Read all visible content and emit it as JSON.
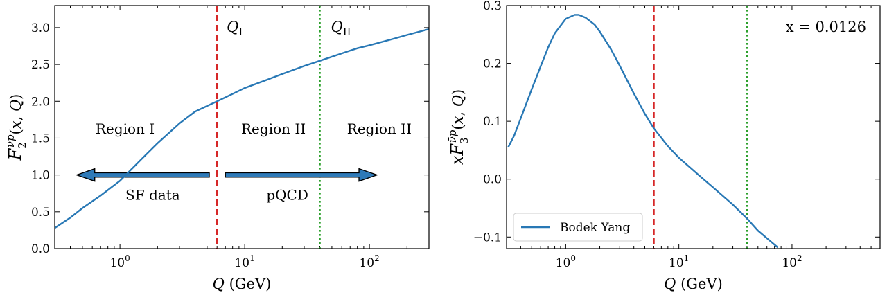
{
  "colors": {
    "curve": "#2878b5",
    "q1_line": "#d62728",
    "q2_line": "#2ca02c",
    "arrow_fill": "#2e7ab8",
    "arrow_stroke": "#000000"
  },
  "chart_data": [
    {
      "type": "line",
      "ylabel": "F_2^{νp}(x, Q)",
      "xlabel": "Q (GeV)",
      "xscale": "log",
      "xlim": [
        0.3,
        300
      ],
      "ylim": [
        0.0,
        3.3
      ],
      "xticks": [
        {
          "value": 1,
          "label": "10^0"
        },
        {
          "value": 10,
          "label": "10^1"
        },
        {
          "value": 100,
          "label": "10^2"
        }
      ],
      "yticks": [
        0.0,
        0.5,
        1.0,
        1.5,
        2.0,
        2.5,
        3.0
      ],
      "ytick_labels": [
        "0.0",
        "0.5",
        "1.0",
        "1.5",
        "2.0",
        "2.5",
        "3.0"
      ],
      "series": [
        {
          "x": [
            0.3,
            0.4,
            0.5,
            0.7,
            1.0,
            1.5,
            2.0,
            3.0,
            4.0,
            6.0,
            8.0,
            10,
            15,
            20,
            30,
            40,
            60,
            80,
            100,
            150,
            200,
            300
          ],
          "y": [
            0.28,
            0.42,
            0.55,
            0.72,
            0.92,
            1.22,
            1.43,
            1.7,
            1.86,
            2.0,
            2.1,
            2.18,
            2.29,
            2.37,
            2.48,
            2.55,
            2.65,
            2.72,
            2.76,
            2.84,
            2.9,
            2.98
          ]
        }
      ],
      "vlines": [
        {
          "x": 6,
          "label": "Q_I",
          "style": "dashed",
          "color_key": "q1_line"
        },
        {
          "x": 40,
          "label": "Q_II",
          "style": "dotted",
          "color_key": "q2_line"
        }
      ],
      "region_labels": [
        {
          "text": "Region I",
          "x": 1.1,
          "y": 1.28
        },
        {
          "text": "Region II",
          "x": 17,
          "y": 1.28
        },
        {
          "text": "Region II",
          "x": 120,
          "y": 1.28
        }
      ],
      "arrows": [
        {
          "label": "SF data",
          "from": 5.2,
          "to": 0.45,
          "y": 1.0
        },
        {
          "label": "pQCD",
          "from": 7,
          "to": 115,
          "y": 1.0
        }
      ]
    },
    {
      "type": "line",
      "ylabel": "x F_3^{ν̄p}(x, Q)",
      "xlabel": "Q (GeV)",
      "xscale": "log",
      "xlim": [
        0.3,
        600
      ],
      "ylim": [
        -0.12,
        0.3
      ],
      "xticks": [
        {
          "value": 1,
          "label": "10^0"
        },
        {
          "value": 10,
          "label": "10^1"
        },
        {
          "value": 100,
          "label": "10^2"
        }
      ],
      "yticks": [
        -0.1,
        0.0,
        0.1,
        0.2,
        0.3
      ],
      "ytick_labels": [
        "−0.1",
        "0.0",
        "0.1",
        "0.2",
        "0.3"
      ],
      "annotation": "x = 0.0126",
      "legend": {
        "position": "lower left",
        "entries": [
          "Bodek Yang"
        ]
      },
      "series": [
        {
          "name": "Bodek Yang",
          "x": [
            0.31,
            0.35,
            0.4,
            0.5,
            0.6,
            0.7,
            0.8,
            1.0,
            1.2,
            1.3,
            1.5,
            1.8,
            2.0,
            2.5,
            3.0,
            4.0,
            5.0,
            6.0,
            8.0,
            10,
            15,
            20,
            30,
            40,
            50,
            60,
            75
          ],
          "y": [
            0.055,
            0.075,
            0.105,
            0.155,
            0.195,
            0.228,
            0.252,
            0.277,
            0.284,
            0.284,
            0.279,
            0.267,
            0.255,
            0.225,
            0.196,
            0.148,
            0.113,
            0.088,
            0.057,
            0.037,
            0.007,
            -0.014,
            -0.044,
            -0.068,
            -0.089,
            -0.102,
            -0.118
          ]
        }
      ],
      "vlines": [
        {
          "x": 6,
          "style": "dashed",
          "color_key": "q1_line"
        },
        {
          "x": 40,
          "style": "dotted",
          "color_key": "q2_line"
        }
      ]
    }
  ]
}
